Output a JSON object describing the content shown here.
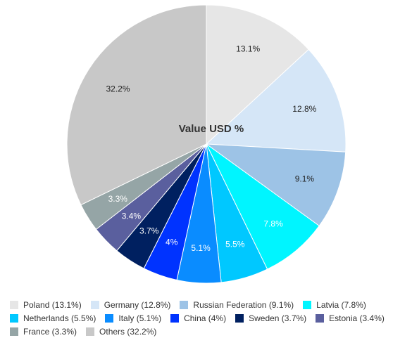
{
  "chart_data": {
    "type": "pie",
    "title": "Value USD %",
    "legend_position": "bottom",
    "slices": [
      {
        "name": "Poland",
        "legend": "Poland (13.1%)",
        "value": 13.1,
        "label": "13.1%",
        "color": "#e6e6e6",
        "label_color": "#222222"
      },
      {
        "name": "Germany",
        "legend": "Germany (12.8%)",
        "value": 12.8,
        "label": "12.8%",
        "color": "#d5e6f7",
        "label_color": "#222222"
      },
      {
        "name": "Russian Federation",
        "legend": "Russian Federation (9.1%)",
        "value": 9.1,
        "label": "9.1%",
        "color": "#9dc3e6",
        "label_color": "#222222"
      },
      {
        "name": "Latvia",
        "legend": "Latvia (7.8%)",
        "value": 7.8,
        "label": "7.8%",
        "color": "#00f5ff",
        "label_color": "#ffffff"
      },
      {
        "name": "Netherlands",
        "legend": "Netherlands (5.5%)",
        "value": 5.5,
        "label": "5.5%",
        "color": "#00c8ff",
        "label_color": "#ffffff"
      },
      {
        "name": "Italy",
        "legend": "Italy (5.1%)",
        "value": 5.1,
        "label": "5.1%",
        "color": "#0a8cff",
        "label_color": "#ffffff"
      },
      {
        "name": "China",
        "legend": "China (4%)",
        "value": 4.0,
        "label": "4%",
        "color": "#0033ff",
        "label_color": "#ffffff"
      },
      {
        "name": "Sweden",
        "legend": "Sweden (3.7%)",
        "value": 3.7,
        "label": "3.7%",
        "color": "#002060",
        "label_color": "#ffffff"
      },
      {
        "name": "Estonia",
        "legend": "Estonia (3.4%)",
        "value": 3.4,
        "label": "3.4%",
        "color": "#5a5f9e",
        "label_color": "#ffffff"
      },
      {
        "name": "France",
        "legend": "France (3.3%)",
        "value": 3.3,
        "label": "3.3%",
        "color": "#95a5a6",
        "label_color": "#ffffff"
      },
      {
        "name": "Others",
        "legend": "Others (32.2%)",
        "value": 32.2,
        "label": "32.2%",
        "color": "#c8c8c8",
        "label_color": "#222222"
      }
    ]
  }
}
